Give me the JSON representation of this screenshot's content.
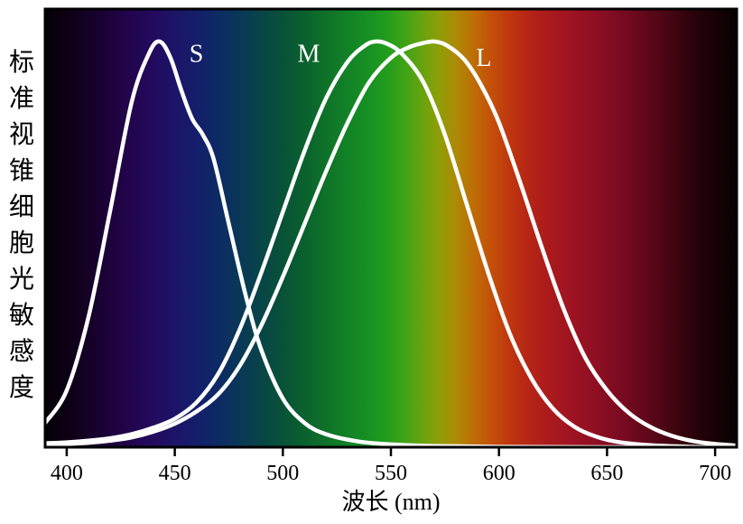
{
  "chart_data": {
    "type": "line",
    "title": "",
    "xlabel": "波长 (nm)",
    "ylabel": "标准视锥细胞光敏感度",
    "xlim": [
      390,
      710
    ],
    "ylim": [
      0,
      1.08
    ],
    "x_ticks": [
      400,
      450,
      500,
      550,
      600,
      650,
      700
    ],
    "grid": false,
    "legend": "none",
    "background": "visible-spectrum-gradient",
    "curve_color": "#ffffff",
    "axis_color": "#000000",
    "series": [
      {
        "name": "S",
        "peak_nm": 443,
        "label_nm": 460,
        "label_value": 0.95,
        "x": [
          390,
          400,
          410,
          420,
          430,
          438,
          443,
          448,
          453,
          458,
          463,
          468,
          475,
          483,
          490,
          500,
          510,
          520,
          535,
          550,
          570,
          600,
          650,
          710
        ],
        "values": [
          0.06,
          0.14,
          0.32,
          0.58,
          0.85,
          0.97,
          1.0,
          0.96,
          0.88,
          0.81,
          0.77,
          0.71,
          0.55,
          0.37,
          0.24,
          0.12,
          0.06,
          0.032,
          0.014,
          0.007,
          0.003,
          0.001,
          0.0,
          0.0
        ]
      },
      {
        "name": "M",
        "peak_nm": 543,
        "label_nm": 512,
        "label_value": 0.95,
        "x": [
          390,
          400,
          410,
          420,
          430,
          440,
          450,
          460,
          470,
          480,
          490,
          500,
          510,
          520,
          530,
          538,
          543,
          548,
          555,
          565,
          575,
          585,
          595,
          605,
          615,
          625,
          635,
          645,
          655,
          670,
          690,
          710
        ],
        "values": [
          0.01,
          0.012,
          0.016,
          0.022,
          0.032,
          0.048,
          0.07,
          0.11,
          0.18,
          0.29,
          0.43,
          0.58,
          0.73,
          0.86,
          0.95,
          0.99,
          1.0,
          0.995,
          0.97,
          0.9,
          0.77,
          0.6,
          0.43,
          0.28,
          0.17,
          0.095,
          0.05,
          0.026,
          0.013,
          0.005,
          0.001,
          0.0
        ]
      },
      {
        "name": "L",
        "peak_nm": 570,
        "label_nm": 593,
        "label_value": 0.94,
        "x": [
          390,
          400,
          410,
          420,
          430,
          440,
          450,
          460,
          470,
          480,
          490,
          500,
          510,
          520,
          530,
          540,
          550,
          558,
          564,
          570,
          576,
          584,
          592,
          600,
          610,
          620,
          630,
          640,
          650,
          660,
          670,
          680,
          690,
          700,
          710
        ],
        "values": [
          0.006,
          0.008,
          0.011,
          0.016,
          0.024,
          0.038,
          0.058,
          0.088,
          0.13,
          0.2,
          0.3,
          0.42,
          0.55,
          0.68,
          0.8,
          0.9,
          0.96,
          0.985,
          0.995,
          1.0,
          0.99,
          0.955,
          0.89,
          0.8,
          0.65,
          0.49,
          0.34,
          0.22,
          0.14,
          0.085,
          0.05,
          0.028,
          0.015,
          0.008,
          0.004
        ]
      }
    ],
    "spectrum_stops": [
      {
        "nm": 390,
        "color": "#050006"
      },
      {
        "nm": 400,
        "color": "#0c0014"
      },
      {
        "nm": 410,
        "color": "#150126"
      },
      {
        "nm": 420,
        "color": "#1d023b"
      },
      {
        "nm": 430,
        "color": "#22054e"
      },
      {
        "nm": 440,
        "color": "#220a5e"
      },
      {
        "nm": 450,
        "color": "#1c1468"
      },
      {
        "nm": 460,
        "color": "#141e6a"
      },
      {
        "nm": 470,
        "color": "#0d2a64"
      },
      {
        "nm": 480,
        "color": "#093857"
      },
      {
        "nm": 490,
        "color": "#084547"
      },
      {
        "nm": 500,
        "color": "#085237"
      },
      {
        "nm": 510,
        "color": "#0a612e"
      },
      {
        "nm": 520,
        "color": "#0e7229"
      },
      {
        "nm": 530,
        "color": "#128226"
      },
      {
        "nm": 540,
        "color": "#179122"
      },
      {
        "nm": 548,
        "color": "#229c1d"
      },
      {
        "nm": 556,
        "color": "#3da316"
      },
      {
        "nm": 564,
        "color": "#64a30e"
      },
      {
        "nm": 572,
        "color": "#8f9e08"
      },
      {
        "nm": 580,
        "color": "#ad8a05"
      },
      {
        "nm": 588,
        "color": "#bd6e05"
      },
      {
        "nm": 596,
        "color": "#c35108"
      },
      {
        "nm": 604,
        "color": "#c0390e"
      },
      {
        "nm": 612,
        "color": "#b72814"
      },
      {
        "nm": 622,
        "color": "#ac1b1c"
      },
      {
        "nm": 634,
        "color": "#9e1322"
      },
      {
        "nm": 646,
        "color": "#8d0e23"
      },
      {
        "nm": 658,
        "color": "#770a20"
      },
      {
        "nm": 670,
        "color": "#5c0719"
      },
      {
        "nm": 682,
        "color": "#3e0410"
      },
      {
        "nm": 694,
        "color": "#210208"
      },
      {
        "nm": 710,
        "color": "#070102"
      }
    ]
  }
}
